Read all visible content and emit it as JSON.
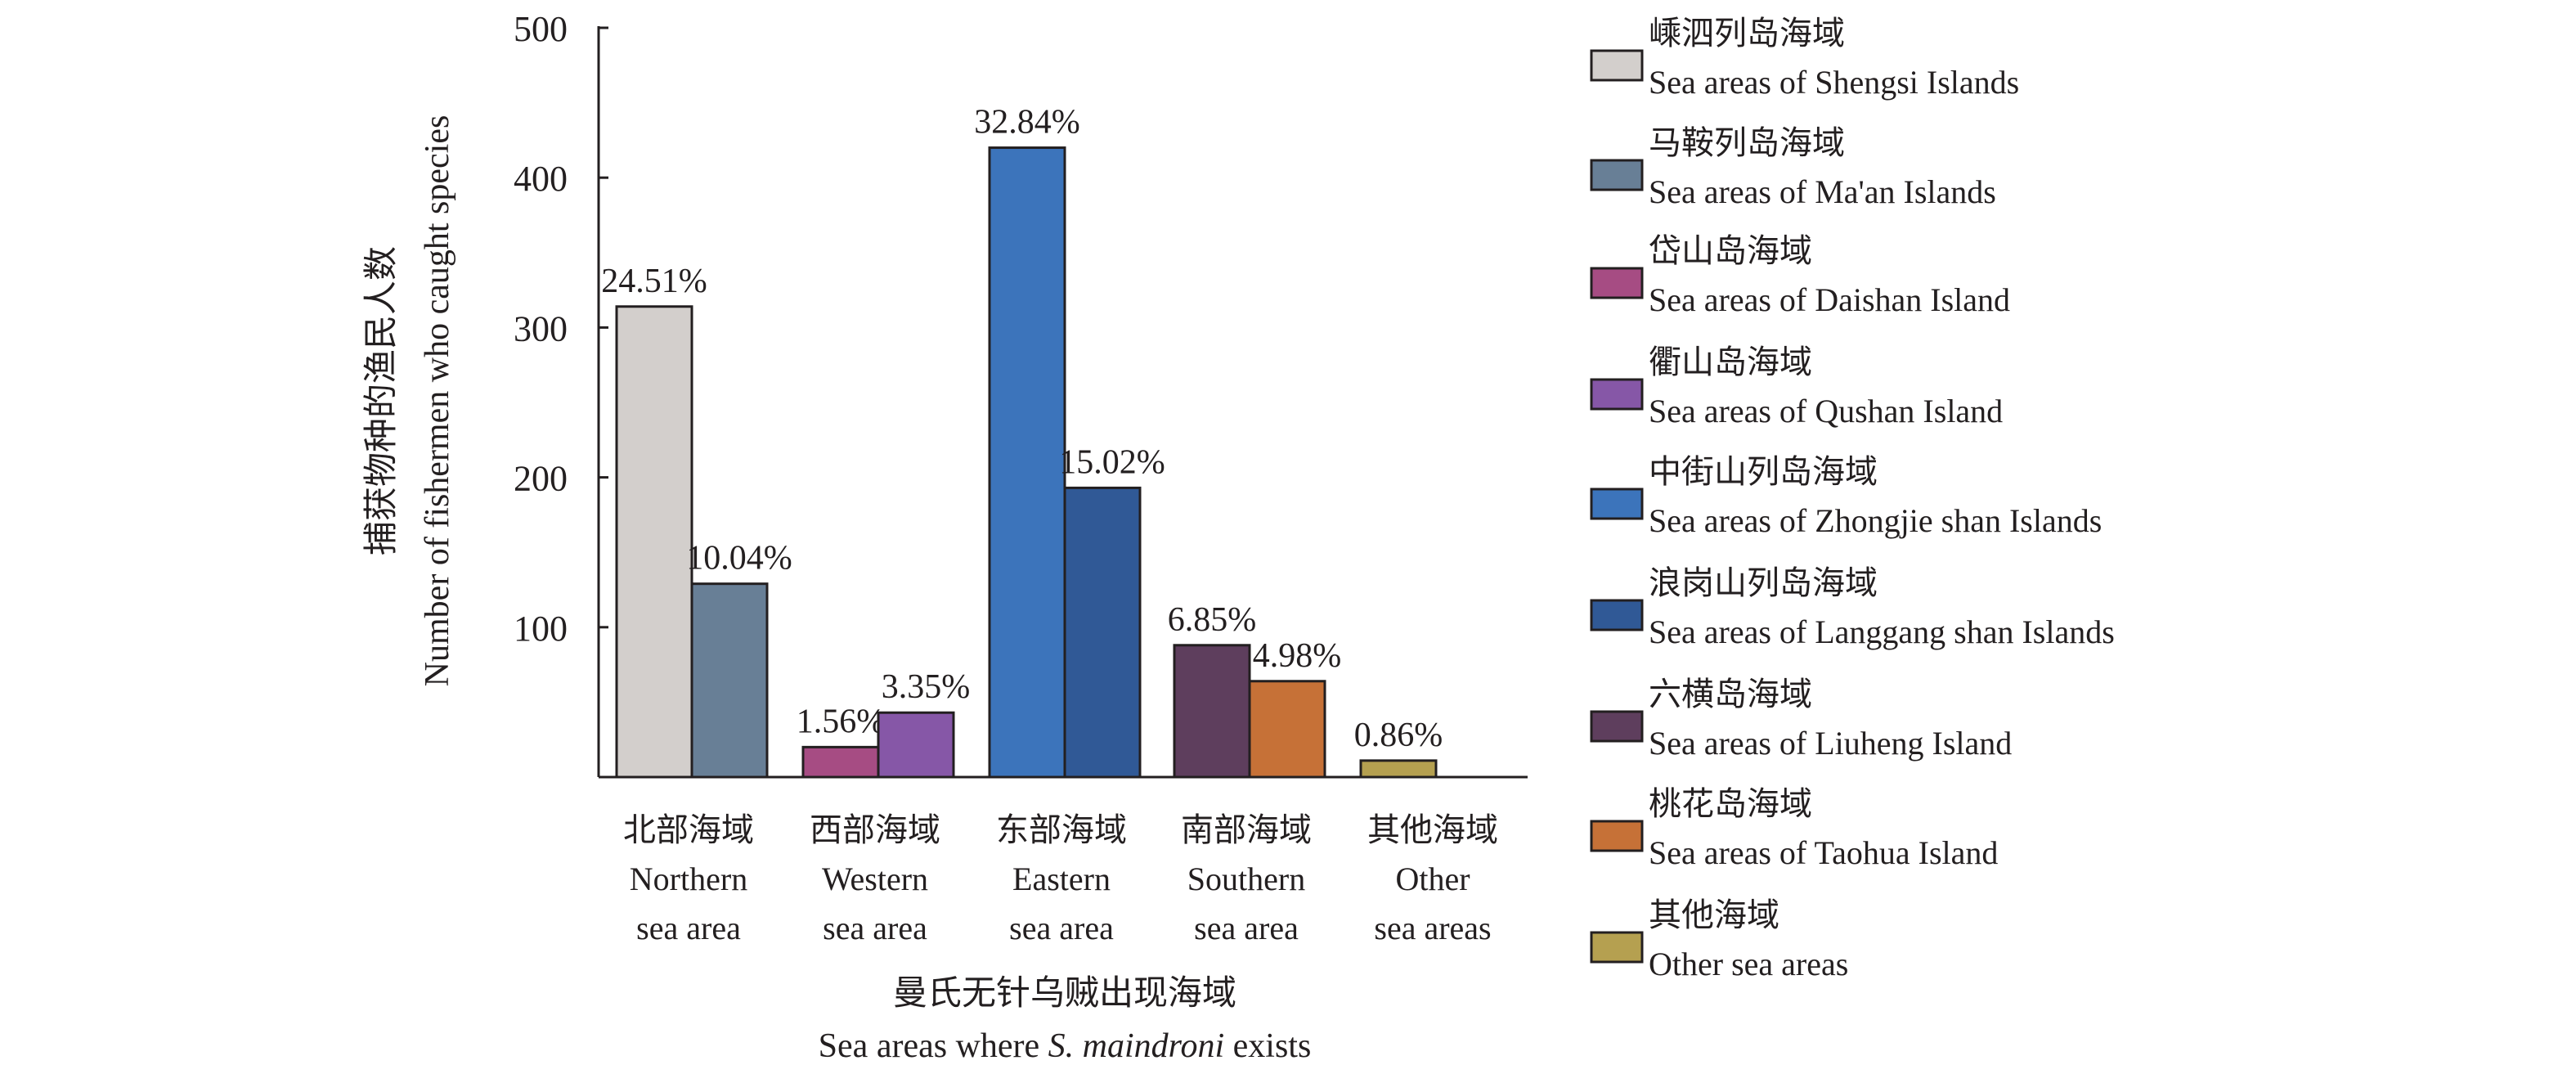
{
  "chart_data": {
    "type": "bar",
    "title": "",
    "xlabel": [
      "曼氏无针乌贼出现海域",
      "Sea areas where ",
      "S. maindroni",
      " exists"
    ],
    "ylabel": [
      "捕获物种的渔民人数",
      "Number of fishermen who caught species"
    ],
    "ylim": [
      0,
      500
    ],
    "yticks": [
      "100",
      "200",
      "300",
      "400",
      "500"
    ],
    "ytick_values": [
      100,
      200,
      300,
      400,
      500
    ],
    "grid": false,
    "legend_position": "right",
    "categories": [
      {
        "cn": "北部海域",
        "en1": "Northern",
        "en2": "sea area"
      },
      {
        "cn": "西部海域",
        "en1": "Western",
        "en2": "sea area"
      },
      {
        "cn": "东部海域",
        "en1": "Eastern",
        "en2": "sea area"
      },
      {
        "cn": "南部海域",
        "en1": "Southern",
        "en2": "sea area"
      },
      {
        "cn": "其他海域",
        "en1": "Other",
        "en2": "sea areas"
      }
    ],
    "series": [
      {
        "cn": "嵊泗列岛海域",
        "en": "Sea areas of Shengsi Islands",
        "color": "#d3cfcc",
        "category": 0,
        "slot": 0,
        "value": 314,
        "label": "24.51%"
      },
      {
        "cn": "马鞍列岛海域",
        "en": "Sea areas of Ma'an Islands",
        "color": "#687f96",
        "category": 0,
        "slot": 1,
        "value": 129,
        "label": "10.04%"
      },
      {
        "cn": "岱山岛海域",
        "en": "Sea areas of  Daishan Island",
        "color": "#a64c83",
        "category": 1,
        "slot": 0,
        "value": 20,
        "label": "1.56%"
      },
      {
        "cn": "衢山岛海域",
        "en": "Sea areas of  Qushan Island",
        "color": "#8657a7",
        "category": 1,
        "slot": 1,
        "value": 43,
        "label": "3.35%"
      },
      {
        "cn": "中街山列岛海域",
        "en": "Sea areas of  Zhongjie shan Islands",
        "color": "#3c74bb",
        "category": 2,
        "slot": 0,
        "value": 420,
        "label": "32.84%"
      },
      {
        "cn": "浪岗山列岛海域",
        "en": "Sea areas of Langgang shan Islands",
        "color": "#305996",
        "category": 2,
        "slot": 1,
        "value": 193,
        "label": "15.02%"
      },
      {
        "cn": "六横岛海域",
        "en": "Sea areas of Liuheng Island",
        "color": "#5e3e5d",
        "category": 3,
        "slot": 0,
        "value": 88,
        "label": "6.85%"
      },
      {
        "cn": "桃花岛海域",
        "en": "Sea areas of Taohua Island",
        "color": "#c67137",
        "category": 3,
        "slot": 1,
        "value": 64,
        "label": "4.98%"
      },
      {
        "cn": "其他海域",
        "en": "Other sea areas",
        "color": "#b5a050",
        "category": 4,
        "slot": 0,
        "value": 11,
        "label": "0.86%"
      }
    ]
  }
}
